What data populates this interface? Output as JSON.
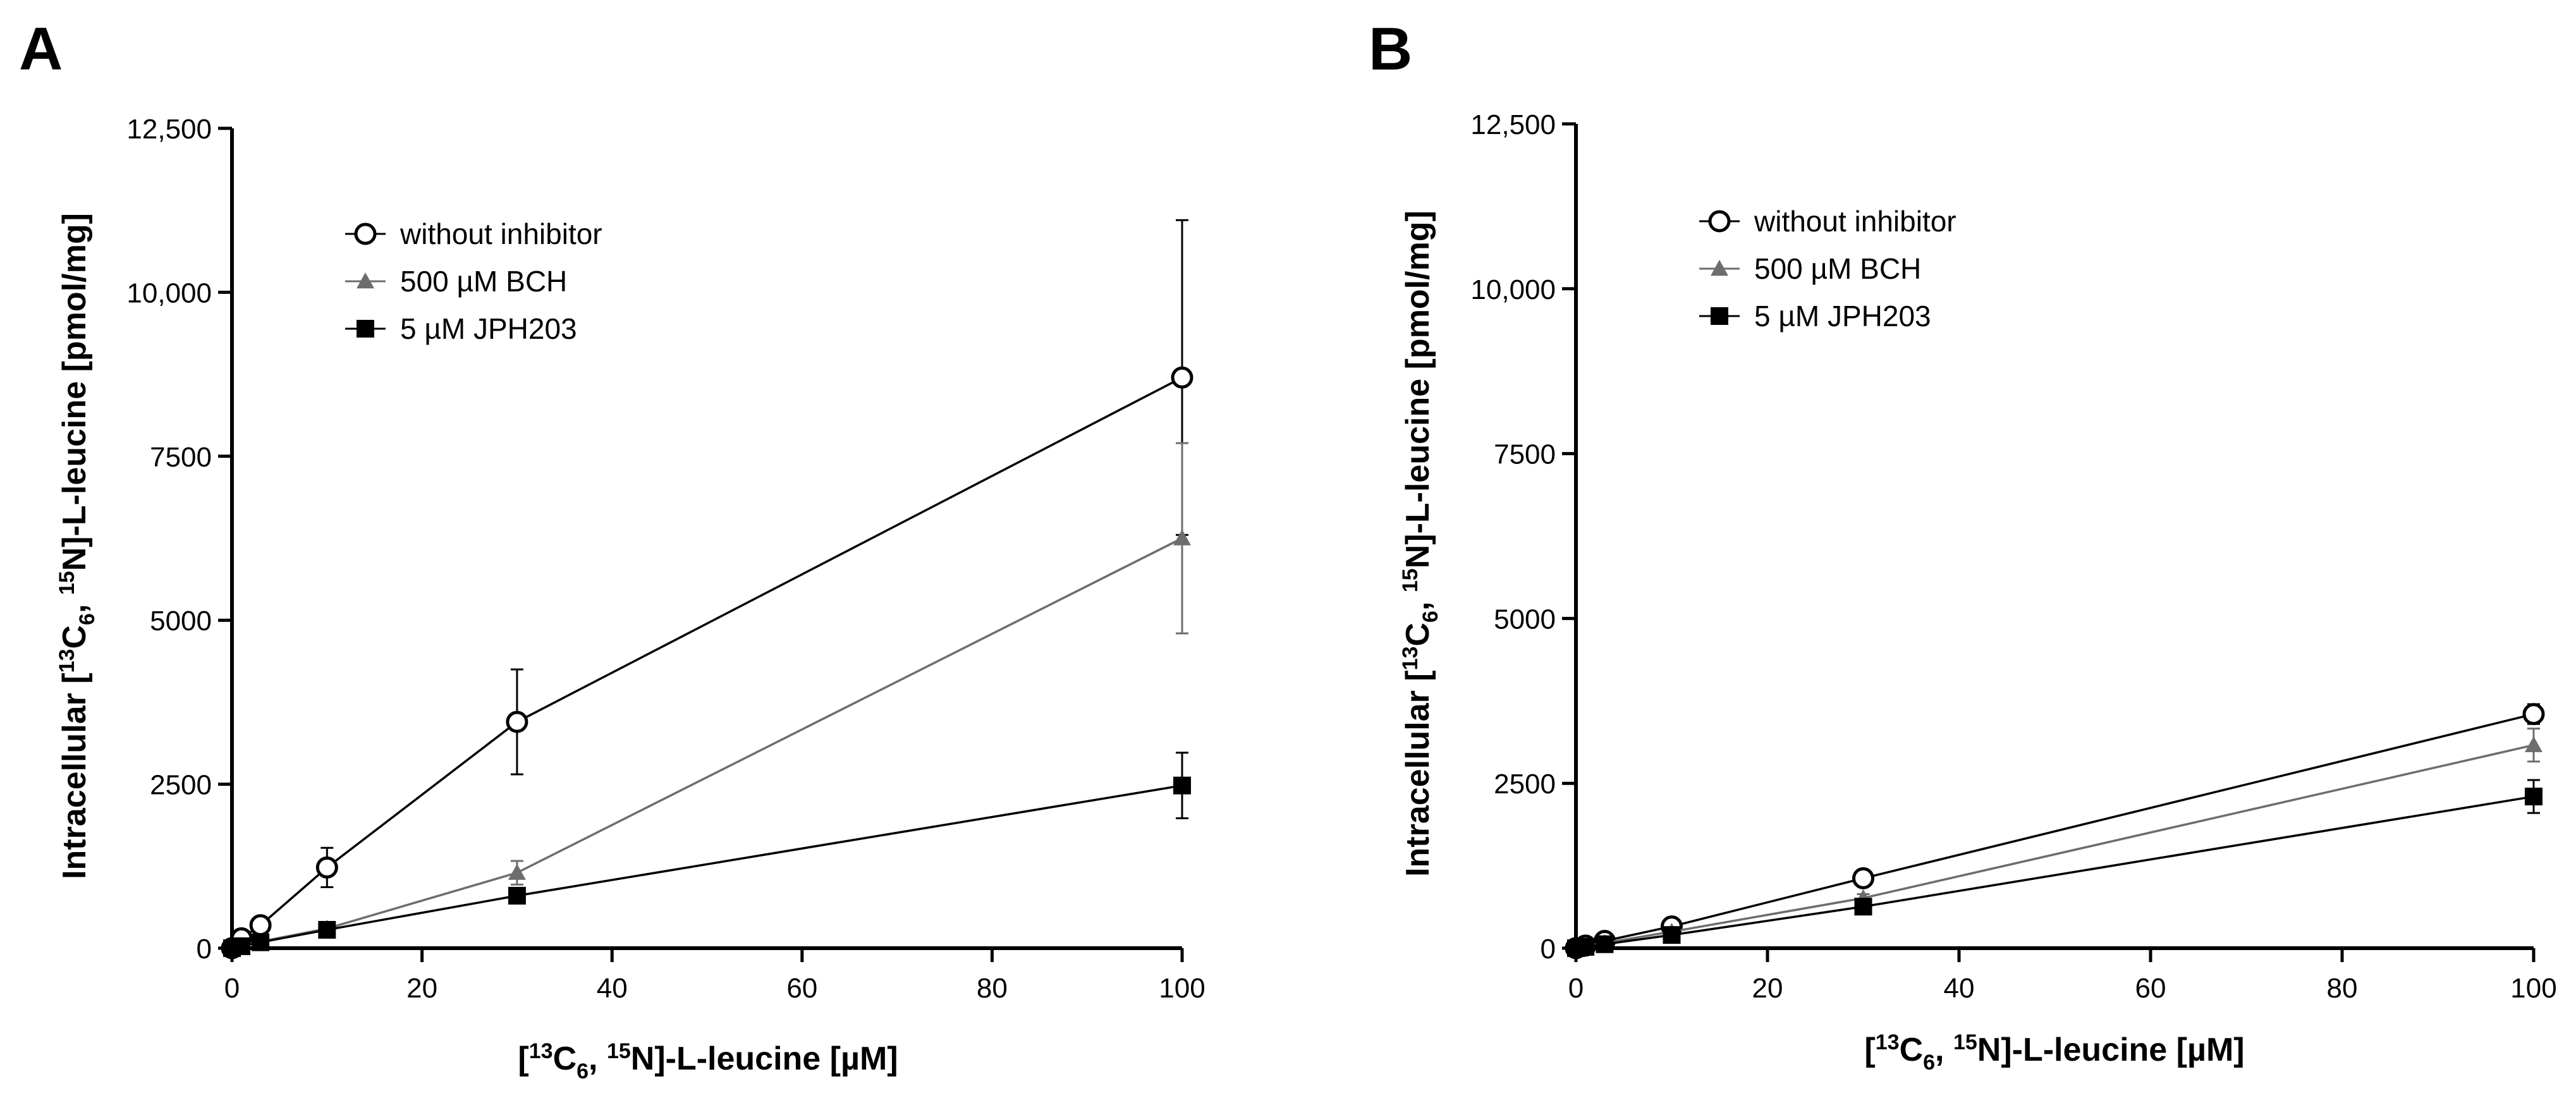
{
  "chart_data": [
    {
      "panel": "A",
      "type": "line",
      "xlabel": "[13C6, 15N]-L-leucine [µM]",
      "ylabel": "Intracellular [13C6, 15N]-L-leucine [pmol/mg]",
      "xlim": [
        0,
        100
      ],
      "ylim": [
        0,
        12500
      ],
      "xticks": [
        0,
        20,
        40,
        60,
        80,
        100
      ],
      "yticks": [
        0,
        2500,
        5000,
        7500,
        10000,
        12500
      ],
      "ytick_labels": [
        "0",
        "2500",
        "5000",
        "7500",
        "10,000",
        "12,500"
      ],
      "legend_position": "top-left",
      "series": [
        {
          "name": "without inhibitor",
          "marker": "open-circle",
          "color": "#000000",
          "x": [
            0,
            1,
            3,
            10,
            30,
            100
          ],
          "y": [
            0,
            150,
            350,
            1230,
            3450,
            8700
          ],
          "err": [
            0,
            40,
            80,
            300,
            800,
            2400
          ]
        },
        {
          "name": "500 µM BCH",
          "marker": "triangle",
          "color": "#6d6d6d",
          "x": [
            0,
            1,
            3,
            10,
            30,
            100
          ],
          "y": [
            0,
            40,
            100,
            300,
            1150,
            6250
          ],
          "err": [
            0,
            10,
            20,
            60,
            180,
            1450
          ]
        },
        {
          "name": "5 µM JPH203",
          "marker": "square",
          "color": "#000000",
          "x": [
            0,
            1,
            3,
            10,
            30,
            100
          ],
          "y": [
            0,
            30,
            90,
            280,
            800,
            2480
          ],
          "err": [
            0,
            10,
            20,
            50,
            120,
            500
          ]
        }
      ]
    },
    {
      "panel": "B",
      "type": "line",
      "xlabel": "[13C6, 15N]-L-leucine [µM]",
      "ylabel": "Intracellular [13C6, 15N]-L-leucine [pmol/mg]",
      "xlim": [
        0,
        100
      ],
      "ylim": [
        0,
        12500
      ],
      "xticks": [
        0,
        20,
        40,
        60,
        80,
        100
      ],
      "yticks": [
        0,
        2500,
        5000,
        7500,
        10000,
        12500
      ],
      "ytick_labels": [
        "0",
        "2500",
        "5000",
        "7500",
        "10,000",
        "12,500"
      ],
      "legend_position": "top-left",
      "series": [
        {
          "name": "without inhibitor",
          "marker": "open-circle",
          "color": "#000000",
          "x": [
            0,
            1,
            3,
            10,
            30,
            100
          ],
          "y": [
            0,
            40,
            110,
            330,
            1060,
            3550
          ],
          "err": [
            0,
            10,
            20,
            40,
            80,
            150
          ]
        },
        {
          "name": "500 µM BCH",
          "marker": "triangle",
          "color": "#6d6d6d",
          "x": [
            0,
            1,
            3,
            10,
            30,
            100
          ],
          "y": [
            0,
            30,
            80,
            250,
            760,
            3080
          ],
          "err": [
            0,
            10,
            20,
            30,
            60,
            250
          ]
        },
        {
          "name": "5 µM JPH203",
          "marker": "square",
          "color": "#000000",
          "x": [
            0,
            1,
            3,
            10,
            30,
            100
          ],
          "y": [
            0,
            20,
            60,
            200,
            630,
            2300
          ],
          "err": [
            0,
            10,
            15,
            30,
            50,
            250
          ]
        }
      ]
    }
  ]
}
